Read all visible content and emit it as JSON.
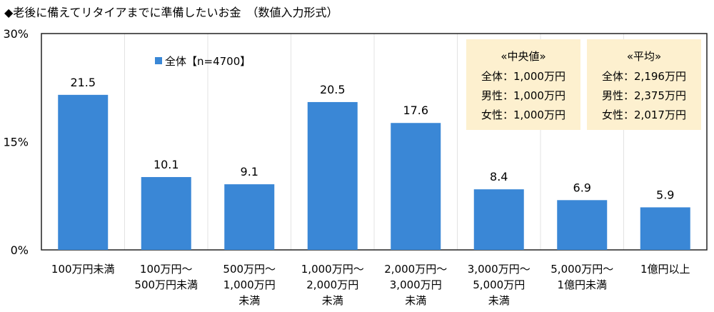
{
  "chart_data": {
    "type": "bar",
    "title": "◆老後に備えてリタイアまでに準備したいお金　（数値入力形式）",
    "categories": [
      [
        "100万円未満"
      ],
      [
        "100万円～",
        "500万円未満"
      ],
      [
        "500万円～",
        "1,000万円",
        "未満"
      ],
      [
        "1,000万円～",
        "2,000万円",
        "未満"
      ],
      [
        "2,000万円～",
        "3,000万円",
        "未満"
      ],
      [
        "3,000万円～",
        "5,000万円",
        "未満"
      ],
      [
        "5,000万円～",
        "1億円未満"
      ],
      [
        "1億円以上"
      ]
    ],
    "series": [
      {
        "name": "全体【n=4700】",
        "values": [
          21.5,
          10.1,
          9.1,
          20.5,
          17.6,
          8.4,
          6.9,
          5.9
        ],
        "color": "#3a87d6"
      }
    ],
    "data_labels": [
      "21.5",
      "10.1",
      "9.1",
      "20.5",
      "17.6",
      "8.4",
      "6.9",
      "5.9"
    ],
    "y_ticks": [
      {
        "value": 0,
        "label": "0%"
      },
      {
        "value": 15,
        "label": "15%"
      },
      {
        "value": 30,
        "label": "30%"
      }
    ],
    "ylim": [
      0,
      30
    ],
    "legend_position": "top-left",
    "annotations": [
      {
        "title": "«中央値»",
        "lines": [
          "全体：1,000万円",
          "男性：1,000万円",
          "女性：1,000万円"
        ]
      },
      {
        "title": "«平均»",
        "lines": [
          "全体：2,196万円",
          "男性：2,375万円",
          "女性：2,017万円"
        ]
      }
    ],
    "annotation_color": "#fdf0cf"
  }
}
